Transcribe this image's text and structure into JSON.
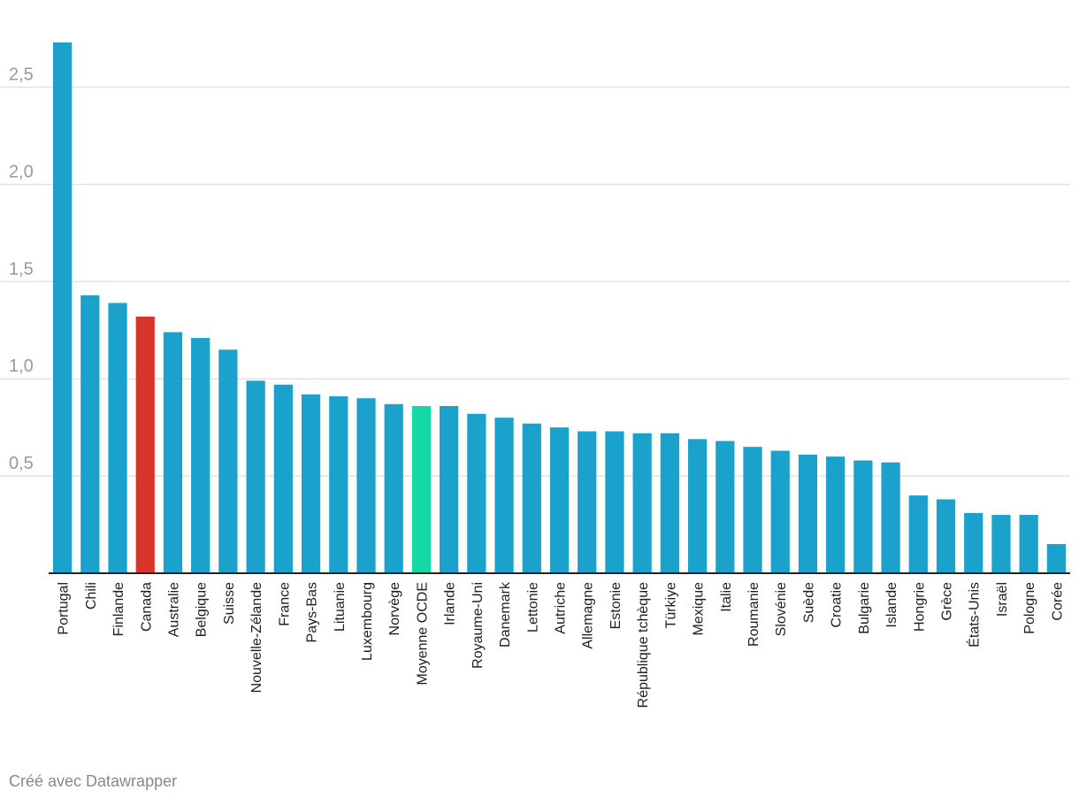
{
  "chart_data": {
    "type": "bar",
    "title": "",
    "xlabel": "",
    "ylabel": "",
    "ylim": [
      0,
      2.73
    ],
    "yticks": [
      "0,5",
      "1,0",
      "1,5",
      "2,0",
      "2,5"
    ],
    "ytick_values": [
      0.5,
      1.0,
      1.5,
      2.0,
      2.5
    ],
    "grid": true,
    "categories": [
      "Portugal",
      "Chili",
      "Finlande",
      "Canada",
      "Australie",
      "Belgique",
      "Suisse",
      "Nouvelle-Zélande",
      "France",
      "Pays-Bas",
      "Lituanie",
      "Luxembourg",
      "Norvège",
      "Moyenne OCDE",
      "Irlande",
      "Royaume-Uni",
      "Danemark",
      "Lettonie",
      "Autriche",
      "Allemagne",
      "Estonie",
      "République tchèque",
      "Türkiye",
      "Mexique",
      "Italie",
      "Roumanie",
      "Slovénie",
      "Suède",
      "Croatie",
      "Bulgarie",
      "Islande",
      "Hongrie",
      "Grèce",
      "États-Unis",
      "Israël",
      "Pologne",
      "Corée"
    ],
    "values": [
      2.73,
      1.43,
      1.39,
      1.32,
      1.24,
      1.21,
      1.15,
      0.99,
      0.97,
      0.92,
      0.91,
      0.9,
      0.87,
      0.86,
      0.86,
      0.82,
      0.8,
      0.77,
      0.75,
      0.73,
      0.73,
      0.72,
      0.72,
      0.69,
      0.68,
      0.65,
      0.63,
      0.61,
      0.6,
      0.58,
      0.57,
      0.4,
      0.38,
      0.31,
      0.3,
      0.3,
      0.15
    ],
    "colors": {
      "default": "#1aa1cc",
      "highlight_canada": "#d9342b",
      "highlight_average": "#15d9a4",
      "grid": "#e3e3e3",
      "axis": "#222222"
    },
    "highlights": {
      "Canada": "highlight_canada",
      "Moyenne OCDE": "highlight_average"
    }
  },
  "footer": {
    "credit": "Créé avec Datawrapper"
  }
}
